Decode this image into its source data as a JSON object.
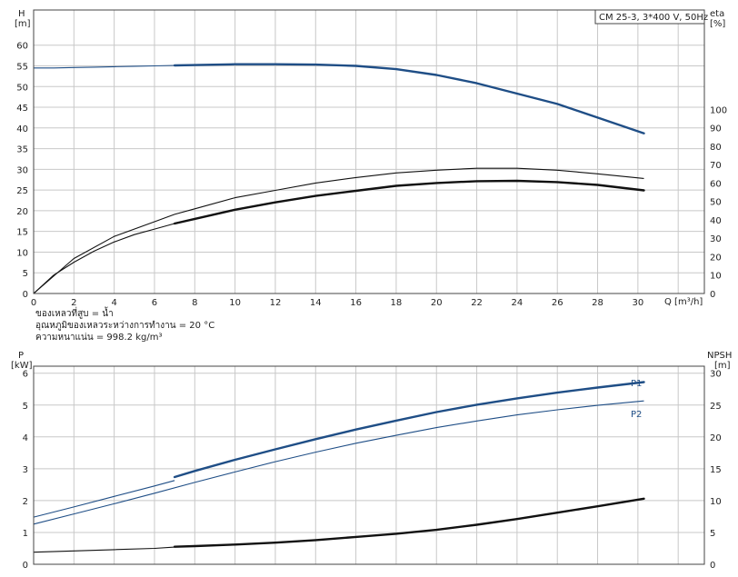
{
  "chart_data": [
    {
      "type": "line",
      "title": "CM 25-3, 3*400 V, 50Hz",
      "left_axis": {
        "label_top": "H",
        "label_unit": "[m]",
        "ticks": [
          0,
          5,
          10,
          15,
          20,
          25,
          30,
          35,
          40,
          45,
          50,
          55,
          60
        ],
        "range": [
          0,
          68.5
        ]
      },
      "right_axis": {
        "label_top": "eta",
        "label_unit": "[%]",
        "ticks": [
          0,
          10,
          20,
          30,
          40,
          50,
          60,
          70,
          80,
          90,
          100
        ],
        "range": [
          0,
          154
        ]
      },
      "x_axis": {
        "label": "Q [m³/h]",
        "ticks": [
          0,
          2,
          4,
          6,
          8,
          10,
          12,
          14,
          16,
          18,
          20,
          22,
          24,
          26,
          28,
          30
        ],
        "range": [
          0,
          33.3
        ]
      },
      "grid": true,
      "series": [
        {
          "key": "H",
          "axis": "left",
          "color": "#1f4e86",
          "thin_x": [
            0,
            1,
            2,
            3,
            4,
            5,
            6,
            7
          ],
          "thin_y": [
            54.5,
            54.5,
            54.6,
            54.7,
            54.8,
            54.9,
            55.0,
            55.1
          ],
          "thick_x": [
            7,
            8,
            10,
            12,
            14,
            16,
            18,
            20,
            22,
            24,
            26,
            28,
            30.3
          ],
          "thick_y": [
            55.1,
            55.2,
            55.4,
            55.4,
            55.3,
            55.0,
            54.2,
            52.8,
            50.8,
            48.3,
            45.8,
            42.5,
            38.7
          ]
        },
        {
          "key": "eta_outer",
          "axis": "right",
          "color": "#111111",
          "thin_x": [
            0,
            2,
            4,
            6,
            7,
            8,
            10,
            12,
            14,
            16,
            18,
            20,
            22,
            24,
            26,
            28,
            30.3
          ],
          "thin_y": [
            0,
            19,
            31,
            39,
            43,
            46,
            52,
            56,
            60,
            63,
            65.5,
            67,
            68,
            68,
            67,
            65,
            62.5
          ],
          "thick_x": [],
          "thick_y": []
        },
        {
          "key": "eta",
          "axis": "right",
          "color": "#111111",
          "thin_x": [
            0,
            1,
            2,
            3,
            4,
            5,
            6,
            7
          ],
          "thin_y": [
            0,
            10,
            17,
            23,
            28,
            32,
            35,
            38
          ],
          "thick_x": [
            7,
            8,
            10,
            12,
            14,
            16,
            18,
            20,
            22,
            24,
            26,
            28,
            30.3
          ],
          "thick_y": [
            38,
            40.5,
            45.5,
            49.5,
            53,
            55.8,
            58.5,
            60,
            61,
            61.2,
            60.5,
            59,
            56
          ]
        }
      ],
      "annotations": [
        "ของเหลวที่สูบ = น้ำ",
        "อุณหภูมิของเหลวระหว่างการทำงาน = 20 °C",
        "ความหนาแน่น = 998.2 kg/m³"
      ]
    },
    {
      "type": "line",
      "left_axis": {
        "label_top": "P",
        "label_unit": "[kW]",
        "ticks": [
          0,
          1,
          2,
          3,
          4,
          5,
          6
        ],
        "range": [
          0,
          6.22
        ]
      },
      "right_axis": {
        "label_top": "NPSH",
        "label_unit": "[m]",
        "ticks": [
          0,
          5,
          10,
          15,
          20,
          25,
          30
        ],
        "range": [
          0,
          31.1
        ]
      },
      "x_axis": {
        "range": [
          0,
          33.3
        ]
      },
      "grid": true,
      "series": [
        {
          "key": "P1",
          "name": "P1",
          "axis": "left",
          "color": "#1f4e86",
          "thin_x": [
            0,
            2,
            4,
            6,
            7
          ],
          "thin_y": [
            1.48,
            1.8,
            2.13,
            2.46,
            2.63
          ],
          "thick_x": [
            7,
            8,
            10,
            12,
            14,
            16,
            18,
            20,
            22,
            24,
            26,
            28,
            30.3
          ],
          "thick_y": [
            2.74,
            2.93,
            3.28,
            3.61,
            3.93,
            4.23,
            4.51,
            4.78,
            5.01,
            5.21,
            5.39,
            5.55,
            5.72
          ]
        },
        {
          "key": "P2",
          "name": "P2",
          "axis": "left",
          "color": "#1f4e86",
          "thin_x": [
            0,
            2,
            4,
            6,
            8,
            10,
            12,
            14,
            16,
            18,
            20,
            22,
            24,
            26,
            28,
            30.3
          ],
          "thin_y": [
            1.26,
            1.58,
            1.9,
            2.23,
            2.57,
            2.9,
            3.22,
            3.52,
            3.8,
            4.05,
            4.29,
            4.5,
            4.69,
            4.85,
            4.99,
            5.13
          ],
          "thick_x": [],
          "thick_y": []
        },
        {
          "key": "NPSH",
          "axis": "right",
          "color": "#111111",
          "thin_x": [
            0,
            2,
            4,
            6,
            7
          ],
          "thin_y": [
            1.9,
            2.1,
            2.3,
            2.5,
            2.7
          ],
          "thick_x": [
            7,
            8,
            10,
            12,
            14,
            16,
            18,
            20,
            22,
            24,
            26,
            28,
            30.3
          ],
          "thick_y": [
            2.75,
            2.85,
            3.1,
            3.4,
            3.8,
            4.3,
            4.8,
            5.4,
            6.2,
            7.1,
            8.1,
            9.1,
            10.3
          ]
        }
      ]
    }
  ]
}
